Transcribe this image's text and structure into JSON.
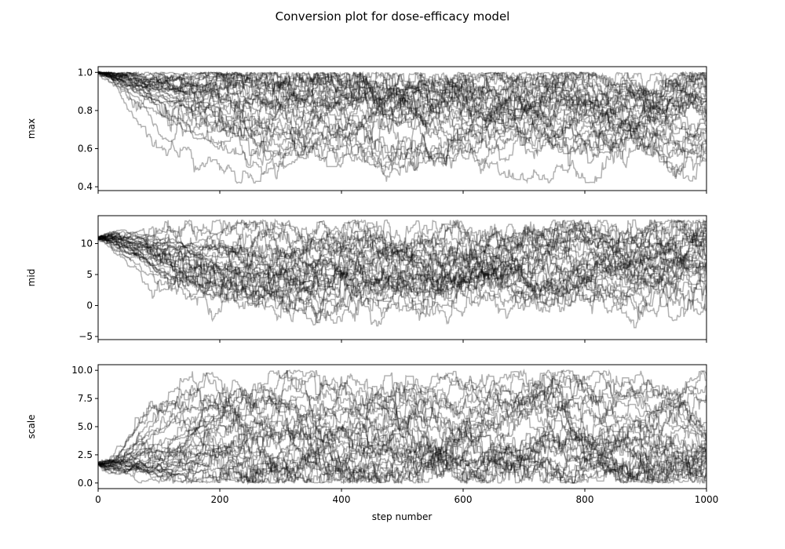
{
  "chart_data": {
    "type": "line",
    "title": "Conversion plot for dose-efficacy model",
    "xlabel": "step number",
    "xlim": [
      0,
      1000
    ],
    "x_ticks": [
      "0",
      "200",
      "400",
      "600",
      "800",
      "1000"
    ],
    "line_color": "#000000",
    "line_opacity": 0.3,
    "num_walkers": 32,
    "steps": 1000,
    "panels": [
      {
        "ylabel": "max",
        "ylim": [
          0.38,
          1.03
        ],
        "y_ticks": [
          {
            "value": 0.4,
            "label": "0.4"
          },
          {
            "value": 0.6,
            "label": "0.6"
          },
          {
            "value": 0.8,
            "label": "0.8"
          },
          {
            "value": 1.0,
            "label": "1.0"
          }
        ],
        "initial_value": 1.0,
        "trace_lower": 0.42,
        "trace_upper": 1.0,
        "modes": [
          0.6,
          0.82,
          0.93
        ]
      },
      {
        "ylabel": "mid",
        "ylim": [
          -5.5,
          14.5
        ],
        "y_ticks": [
          {
            "value": -5,
            "label": "−5"
          },
          {
            "value": 0,
            "label": "0"
          },
          {
            "value": 5,
            "label": "5"
          },
          {
            "value": 10,
            "label": "10"
          }
        ],
        "initial_value": 10.8,
        "trace_lower": -4.5,
        "trace_upper": 13.8,
        "modes": [
          10.7,
          7.0,
          3.0
        ]
      },
      {
        "ylabel": "scale",
        "ylim": [
          -0.5,
          10.5
        ],
        "y_ticks": [
          {
            "value": 0.0,
            "label": "0.0"
          },
          {
            "value": 2.5,
            "label": "2.5"
          },
          {
            "value": 5.0,
            "label": "5.0"
          },
          {
            "value": 7.5,
            "label": "7.5"
          },
          {
            "value": 10.0,
            "label": "10.0"
          }
        ],
        "initial_value": 1.7,
        "trace_lower": 0.0,
        "trace_upper": 10.0,
        "modes": [
          0.8,
          2.8,
          7.5
        ]
      }
    ]
  }
}
